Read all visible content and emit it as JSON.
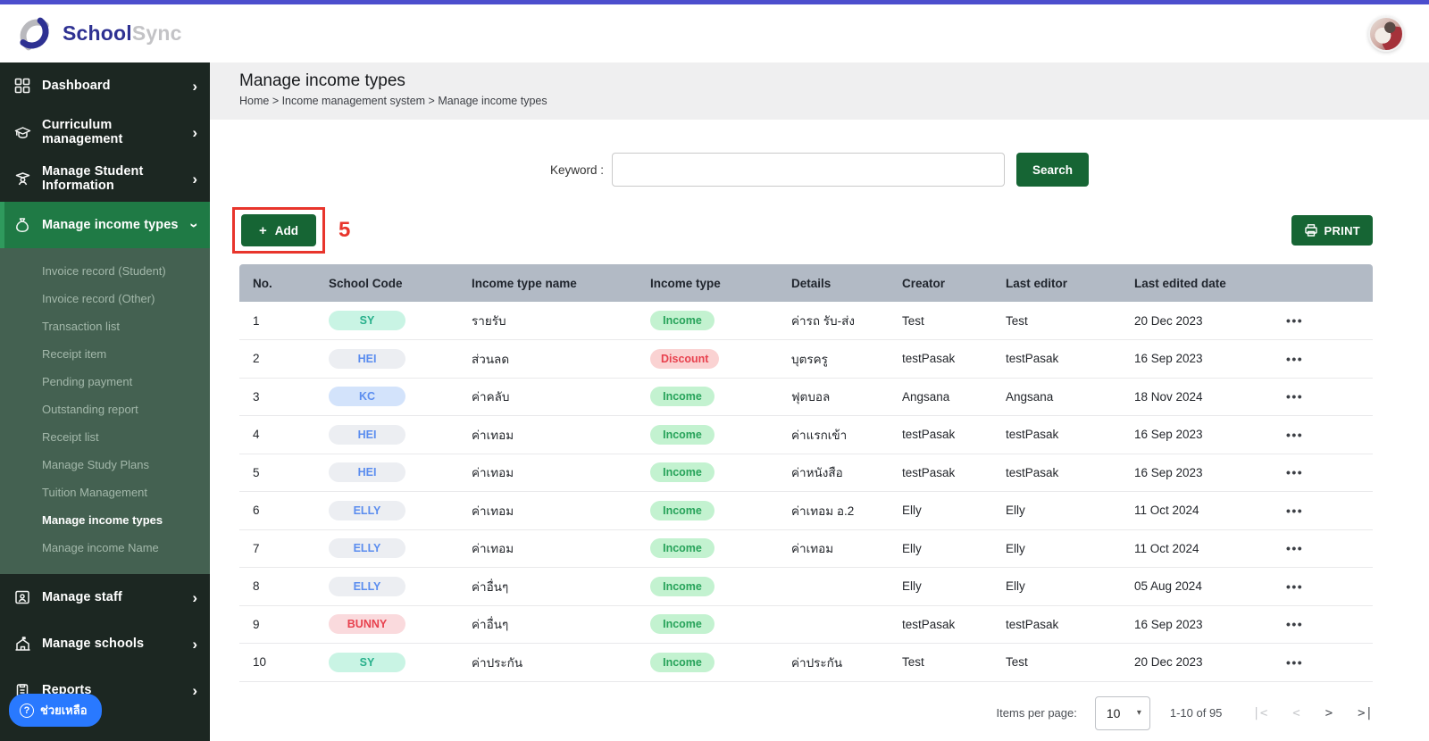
{
  "topbar": {
    "brand_primary": "School",
    "brand_secondary": "Sync"
  },
  "sidebar": {
    "items": [
      {
        "label": "Dashboard",
        "icon": "dashboard-icon"
      },
      {
        "label": "Curriculum management",
        "icon": "graduation-cap-icon"
      },
      {
        "label": "Manage Student Information",
        "icon": "student-icon"
      },
      {
        "label": "Manage income types",
        "icon": "money-bag-icon",
        "active": true
      },
      {
        "label": "Manage staff",
        "icon": "staff-badge-icon"
      },
      {
        "label": "Manage schools",
        "icon": "school-building-icon"
      },
      {
        "label": "Reports",
        "icon": "clipboard-icon"
      }
    ],
    "submenu": [
      "Invoice record (Student)",
      "Invoice record (Other)",
      "Transaction list",
      "Receipt item",
      "Pending payment",
      "Outstanding report",
      "Receipt list",
      "Manage Study Plans",
      "Tuition Management",
      "Manage income types",
      "Manage income Name"
    ],
    "submenu_active_index": 9,
    "help_label": "ช่วยเหลือ"
  },
  "page": {
    "title": "Manage income types",
    "breadcrumb": "Home > Income management system > Manage income types"
  },
  "search": {
    "label": "Keyword :",
    "value": "",
    "button_label": "Search"
  },
  "toolbar": {
    "add_label": "Add",
    "add_plus": "+",
    "annotation": "5",
    "print_label": "PRINT"
  },
  "table": {
    "headers": [
      "No.",
      "School Code",
      "Income type name",
      "Income type",
      "Details",
      "Creator",
      "Last editor",
      "Last edited date",
      ""
    ],
    "rows": [
      {
        "no": "1",
        "school_code": "SY",
        "code_style": "teal",
        "name": "รายรับ",
        "type": "Income",
        "type_style": "income",
        "details": "ค่ารถ รับ-ส่ง",
        "creator": "Test",
        "editor": "Test",
        "date": "20 Dec 2023",
        "actions": "•••"
      },
      {
        "no": "2",
        "school_code": "HEI",
        "code_style": "gray",
        "name": "ส่วนลด",
        "type": "Discount",
        "type_style": "discount",
        "details": "บุตรครู",
        "creator": "testPasak",
        "editor": "testPasak",
        "date": "16 Sep 2023",
        "actions": "•••"
      },
      {
        "no": "3",
        "school_code": "KC",
        "code_style": "blue",
        "name": "ค่าคลับ",
        "type": "Income",
        "type_style": "income",
        "details": "ฟุตบอล",
        "creator": "Angsana",
        "editor": "Angsana",
        "date": "18 Nov 2024",
        "actions": "•••"
      },
      {
        "no": "4",
        "school_code": "HEI",
        "code_style": "gray",
        "name": "ค่าเทอม",
        "type": "Income",
        "type_style": "income",
        "details": "ค่าแรกเข้า",
        "creator": "testPasak",
        "editor": "testPasak",
        "date": "16 Sep 2023",
        "actions": "•••"
      },
      {
        "no": "5",
        "school_code": "HEI",
        "code_style": "gray",
        "name": "ค่าเทอม",
        "type": "Income",
        "type_style": "income",
        "details": "ค่าหนังสือ",
        "creator": "testPasak",
        "editor": "testPasak",
        "date": "16 Sep 2023",
        "actions": "•••"
      },
      {
        "no": "6",
        "school_code": "ELLY",
        "code_style": "gray",
        "name": "ค่าเทอม",
        "type": "Income",
        "type_style": "income",
        "details": "ค่าเทอม อ.2",
        "creator": "Elly",
        "editor": "Elly",
        "date": "11 Oct 2024",
        "actions": "•••"
      },
      {
        "no": "7",
        "school_code": "ELLY",
        "code_style": "gray",
        "name": "ค่าเทอม",
        "type": "Income",
        "type_style": "income",
        "details": "ค่าเทอม",
        "creator": "Elly",
        "editor": "Elly",
        "date": "11 Oct 2024",
        "actions": "•••"
      },
      {
        "no": "8",
        "school_code": "ELLY",
        "code_style": "gray",
        "name": "ค่าอื่นๆ",
        "type": "Income",
        "type_style": "income",
        "details": "",
        "creator": "Elly",
        "editor": "Elly",
        "date": "05 Aug 2024",
        "actions": "•••"
      },
      {
        "no": "9",
        "school_code": "BUNNY",
        "code_style": "red",
        "name": "ค่าอื่นๆ",
        "type": "Income",
        "type_style": "income",
        "details": "",
        "creator": "testPasak",
        "editor": "testPasak",
        "date": "16 Sep 2023",
        "actions": "•••"
      },
      {
        "no": "10",
        "school_code": "SY",
        "code_style": "teal",
        "name": "ค่าประกัน",
        "type": "Income",
        "type_style": "income",
        "details": "ค่าประกัน",
        "creator": "Test",
        "editor": "Test",
        "date": "20 Dec 2023",
        "actions": "•••"
      }
    ]
  },
  "pagination": {
    "items_per_page_label": "Items per page:",
    "page_size": "10",
    "caret": "▾",
    "range": "1-10 of 95",
    "first": "|<",
    "prev": "<",
    "next": ">",
    "last": ">|"
  },
  "colors": {
    "accent_top": "#4c4ecd",
    "sidebar_bg": "#1c2722",
    "sidebar_active": "#1f7a45",
    "submenu_bg": "#446151",
    "button_green": "#166534",
    "table_header_bg": "#b2bac5",
    "annotation_red": "#e8352c",
    "help_blue": "#2979ff"
  }
}
